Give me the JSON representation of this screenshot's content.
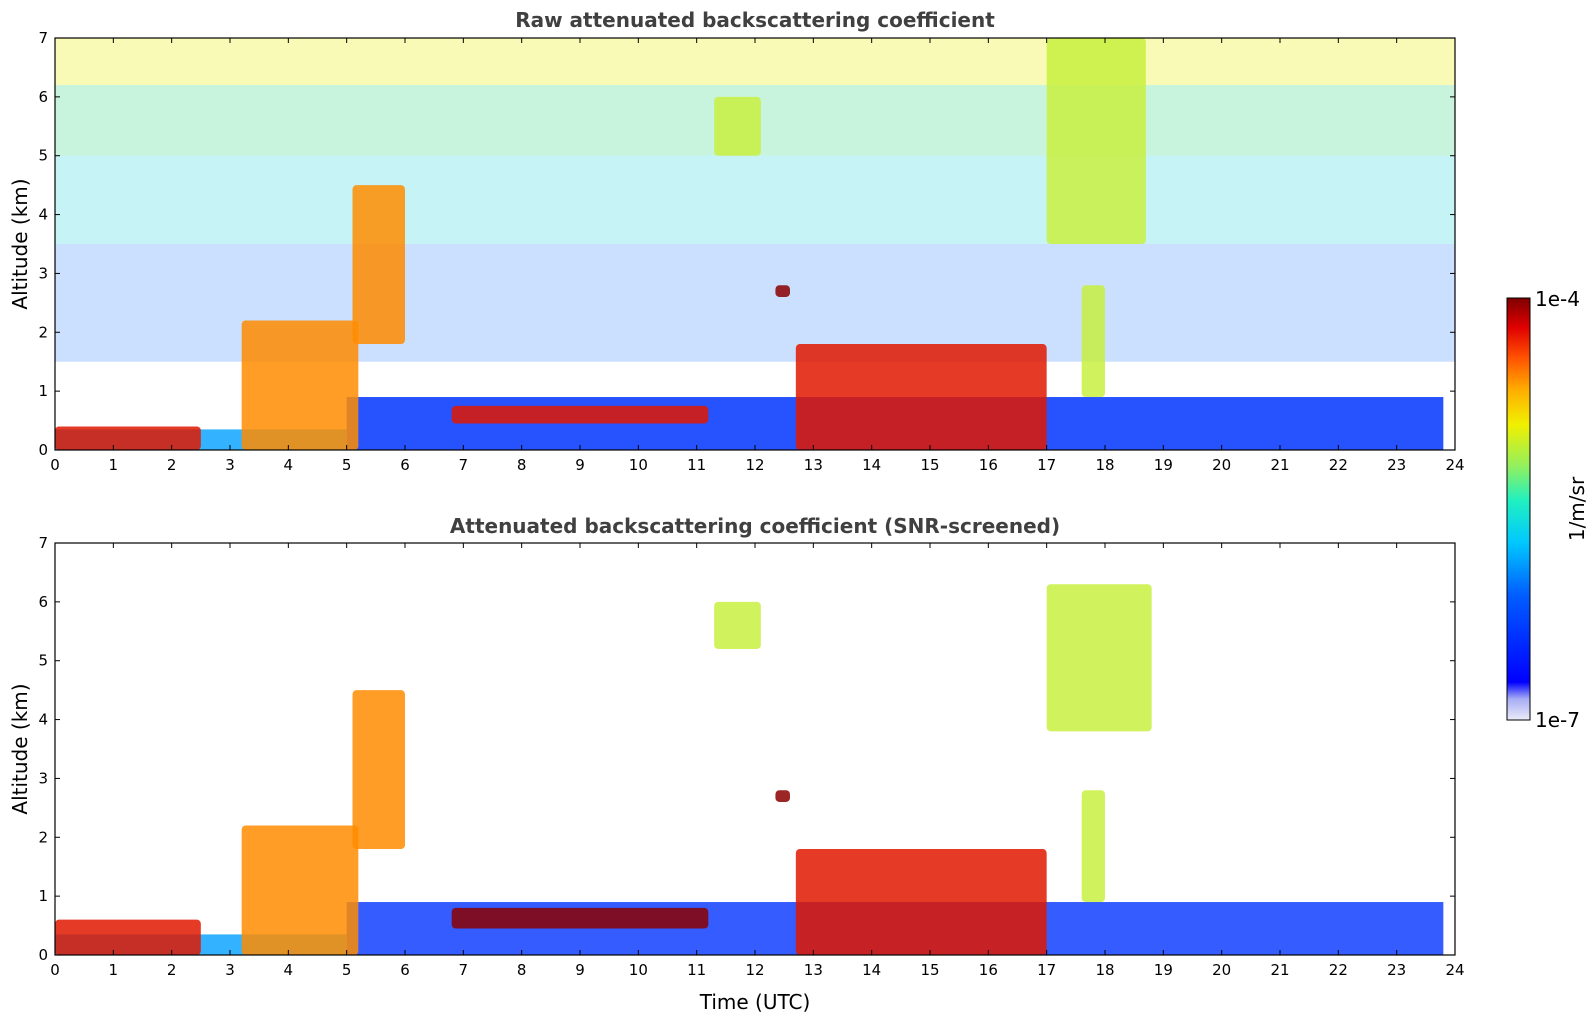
{
  "colorbar": {
    "label": "1/m/sr",
    "max_label": "1e-4",
    "min_label": "1e-7",
    "range": [
      1e-07,
      0.0001
    ],
    "colors": [
      "#e8e8f8",
      "#aab0f4",
      "#6e74f0",
      "#1a28f0",
      "#0000ff",
      "#0050ff",
      "#00a0ff",
      "#00e0f0",
      "#40f0a0",
      "#a0f050",
      "#f0f000",
      "#ffc000",
      "#ff8000",
      "#ff3000",
      "#e00000",
      "#8b0000"
    ]
  },
  "chart_data": [
    {
      "type": "heatmap",
      "title": "Raw attenuated backscattering coefficient",
      "xlabel": "",
      "ylabel": "Altitude (km)",
      "xlim": [
        0,
        24
      ],
      "ylim": [
        0,
        7
      ],
      "xticks": [
        "0",
        "1",
        "2",
        "3",
        "4",
        "5",
        "6",
        "7",
        "8",
        "9",
        "10",
        "11",
        "12",
        "13",
        "14",
        "15",
        "16",
        "17",
        "18",
        "19",
        "20",
        "21",
        "22",
        "23",
        "24"
      ],
      "yticks": [
        "0",
        "1",
        "2",
        "3",
        "4",
        "5",
        "6",
        "7"
      ],
      "features": [
        {
          "desc": "surface aerosol layer",
          "x": [
            0,
            2.5
          ],
          "y": [
            0,
            0.4
          ],
          "level": "high"
        },
        {
          "desc": "boundary layer plumes",
          "x": [
            3.2,
            5.2
          ],
          "y": [
            0,
            2.2
          ],
          "level": "medium-high"
        },
        {
          "desc": "rising layer",
          "x": [
            5.1,
            6.0
          ],
          "y": [
            1.8,
            4.5
          ],
          "level": "medium-high"
        },
        {
          "desc": "stratocumulus layer",
          "x": [
            6.8,
            11.2
          ],
          "y": [
            0.45,
            0.75
          ],
          "level": "high"
        },
        {
          "desc": "high cloud",
          "x": [
            11.3,
            12.1
          ],
          "y": [
            5.0,
            6.0
          ],
          "level": "medium"
        },
        {
          "desc": "isolated cloud",
          "x": [
            12.35,
            12.6
          ],
          "y": [
            2.6,
            2.8
          ],
          "level": "very high"
        },
        {
          "desc": "afternoon boundary layer",
          "x": [
            12.7,
            17.0
          ],
          "y": [
            0,
            1.8
          ],
          "level": "high"
        },
        {
          "desc": "cirrus fallstreaks",
          "x": [
            17.0,
            18.7
          ],
          "y": [
            3.5,
            7.0
          ],
          "level": "medium"
        },
        {
          "desc": "mid-level cloud",
          "x": [
            17.6,
            18.0
          ],
          "y": [
            0.9,
            2.8
          ],
          "level": "medium"
        }
      ]
    },
    {
      "type": "heatmap",
      "title": "Attenuated backscattering coefficient (SNR-screened)",
      "xlabel": "Time (UTC)",
      "ylabel": "Altitude (km)",
      "xlim": [
        0,
        24
      ],
      "ylim": [
        0,
        7
      ],
      "xticks": [
        "0",
        "1",
        "2",
        "3",
        "4",
        "5",
        "6",
        "7",
        "8",
        "9",
        "10",
        "11",
        "12",
        "13",
        "14",
        "15",
        "16",
        "17",
        "18",
        "19",
        "20",
        "21",
        "22",
        "23",
        "24"
      ],
      "yticks": [
        "0",
        "1",
        "2",
        "3",
        "4",
        "5",
        "6",
        "7"
      ],
      "features": [
        {
          "desc": "surface aerosol layer",
          "x": [
            0,
            2.5
          ],
          "y": [
            0,
            0.6
          ],
          "level": "high"
        },
        {
          "desc": "boundary layer plumes",
          "x": [
            3.2,
            5.2
          ],
          "y": [
            0,
            2.2
          ],
          "level": "medium-high"
        },
        {
          "desc": "rising layer",
          "x": [
            5.1,
            6.0
          ],
          "y": [
            1.8,
            4.5
          ],
          "level": "medium-high"
        },
        {
          "desc": "stratocumulus layer",
          "x": [
            6.8,
            11.2
          ],
          "y": [
            0.45,
            0.8
          ],
          "level": "very high"
        },
        {
          "desc": "high cloud",
          "x": [
            11.3,
            12.1
          ],
          "y": [
            5.2,
            6.0
          ],
          "level": "medium"
        },
        {
          "desc": "isolated cloud",
          "x": [
            12.35,
            12.6
          ],
          "y": [
            2.6,
            2.8
          ],
          "level": "very high"
        },
        {
          "desc": "afternoon boundary layer",
          "x": [
            12.7,
            17.0
          ],
          "y": [
            0,
            1.8
          ],
          "level": "high"
        },
        {
          "desc": "cirrus fallstreaks",
          "x": [
            17.0,
            18.8
          ],
          "y": [
            3.8,
            6.3
          ],
          "level": "medium"
        },
        {
          "desc": "mid-level cloud",
          "x": [
            17.6,
            18.0
          ],
          "y": [
            0.9,
            2.8
          ],
          "level": "medium"
        }
      ]
    }
  ]
}
